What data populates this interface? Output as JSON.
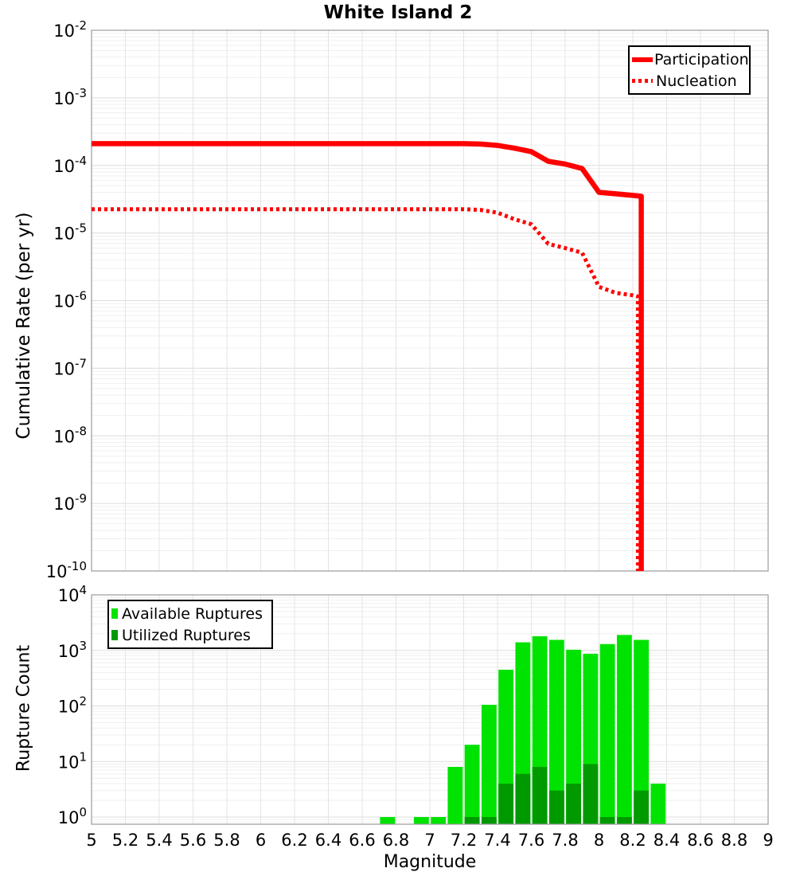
{
  "title": "White Island 2",
  "x_axis": {
    "label": "Magnitude",
    "min": 5,
    "max": 9,
    "tick_step": 0.2,
    "tick_labels": [
      "5",
      "5.2",
      "5.4",
      "5.6",
      "5.8",
      "6",
      "6.2",
      "6.4",
      "6.6",
      "6.8",
      "7",
      "7.2",
      "7.4",
      "7.6",
      "7.8",
      "8",
      "8.2",
      "8.4",
      "8.6",
      "8.8",
      "9"
    ]
  },
  "top_chart": {
    "ylabel": "Cumulative Rate (per yr)",
    "y_scale": "log",
    "y_tick_exponents": [
      -2,
      -3,
      -4,
      -5,
      -6,
      -7,
      -8,
      -9,
      -10
    ],
    "legend": [
      "Participation",
      "Nucleation"
    ]
  },
  "bottom_chart": {
    "ylabel": "Rupture Count",
    "y_scale": "log",
    "y_tick_exponents": [
      4,
      3,
      2,
      1,
      0
    ],
    "legend": [
      "Available Ruptures",
      "Utilized Ruptures"
    ]
  },
  "colors": {
    "line_red": "#ff0000",
    "available_green": "#00e300",
    "utilized_green": "#009a00",
    "grid_major": "#dcdcdc",
    "grid_minor": "#efefef",
    "grid_vertical": "#e4e4e4",
    "plot_border": "#9b9b9b"
  },
  "chart_data": [
    {
      "type": "line",
      "title": "White Island 2",
      "xlabel": "Magnitude",
      "ylabel": "Cumulative Rate (per yr)",
      "x_range": [
        5,
        9
      ],
      "y_scale": "log",
      "y_range": [
        1e-10,
        0.01
      ],
      "grid": true,
      "legend_position": "top-right",
      "series": [
        {
          "name": "Participation",
          "style": "solid",
          "points": [
            [
              5.0,
              0.00021
            ],
            [
              7.2,
              0.00021
            ],
            [
              7.3,
              0.000207
            ],
            [
              7.4,
              0.000198
            ],
            [
              7.5,
              0.00018
            ],
            [
              7.6,
              0.00016
            ],
            [
              7.7,
              0.000115
            ],
            [
              7.8,
              0.000105
            ],
            [
              7.9,
              9e-05
            ],
            [
              8.0,
              4e-05
            ],
            [
              8.1,
              3.8e-05
            ],
            [
              8.2,
              3.6e-05
            ],
            [
              8.25,
              3.5e-05
            ],
            [
              8.25,
              1e-11
            ]
          ]
        },
        {
          "name": "Nucleation",
          "style": "dotted",
          "points": [
            [
              5.0,
              2.25e-05
            ],
            [
              7.2,
              2.25e-05
            ],
            [
              7.3,
              2.2e-05
            ],
            [
              7.4,
              2e-05
            ],
            [
              7.5,
              1.6e-05
            ],
            [
              7.6,
              1.35e-05
            ],
            [
              7.7,
              6.9e-06
            ],
            [
              7.8,
              6e-06
            ],
            [
              7.9,
              5.1e-06
            ],
            [
              8.0,
              1.6e-06
            ],
            [
              8.1,
              1.3e-06
            ],
            [
              8.2,
              1.2e-06
            ],
            [
              8.23,
              1.15e-06
            ],
            [
              8.23,
              1e-11
            ]
          ]
        }
      ]
    },
    {
      "type": "bar",
      "xlabel": "Magnitude",
      "ylabel": "Rupture Count",
      "x_range": [
        5,
        9
      ],
      "y_scale": "log",
      "y_range": [
        1,
        10000.0
      ],
      "bin_width": 0.1,
      "legend_position": "top-left",
      "bins": [
        {
          "m": 6.7,
          "available": 1,
          "utilized": 0
        },
        {
          "m": 6.8,
          "available": 0,
          "utilized": 0
        },
        {
          "m": 6.9,
          "available": 1,
          "utilized": 0
        },
        {
          "m": 7.0,
          "available": 1,
          "utilized": 0
        },
        {
          "m": 7.1,
          "available": 8,
          "utilized": 0
        },
        {
          "m": 7.2,
          "available": 20,
          "utilized": 1
        },
        {
          "m": 7.3,
          "available": 105,
          "utilized": 1
        },
        {
          "m": 7.4,
          "available": 450,
          "utilized": 4
        },
        {
          "m": 7.5,
          "available": 1400,
          "utilized": 6
        },
        {
          "m": 7.6,
          "available": 1800,
          "utilized": 8
        },
        {
          "m": 7.7,
          "available": 1550,
          "utilized": 3
        },
        {
          "m": 7.8,
          "available": 1030,
          "utilized": 4
        },
        {
          "m": 7.9,
          "available": 870,
          "utilized": 9
        },
        {
          "m": 8.0,
          "available": 1300,
          "utilized": 1
        },
        {
          "m": 8.1,
          "available": 1900,
          "utilized": 1
        },
        {
          "m": 8.2,
          "available": 1550,
          "utilized": 3
        },
        {
          "m": 8.3,
          "available": 4,
          "utilized": 0
        }
      ]
    }
  ]
}
